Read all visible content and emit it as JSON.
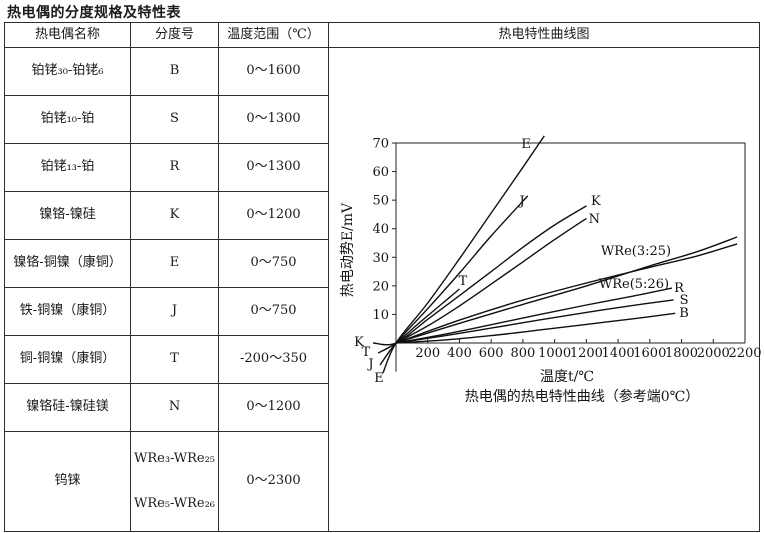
{
  "page_title": "热电偶的分度规格及特性表",
  "table": {
    "headers": [
      "热电偶名称",
      "分度号",
      "温度范围（℃）",
      "热电特性曲线图"
    ],
    "rows": [
      {
        "name": "铂铑₃₀-铂铑₆",
        "code": "B",
        "range": "0～1600"
      },
      {
        "name": "铂铑₁₀-铂",
        "code": "S",
        "range": "0～1300"
      },
      {
        "name": "铂铑₁₃-铂",
        "code": "R",
        "range": "0～1300"
      },
      {
        "name": "镍铬-镍硅",
        "code": "K",
        "range": "0～1200"
      },
      {
        "name": "镍铬-铜镍（康铜）",
        "code": "E",
        "range": "0～750"
      },
      {
        "name": "铁-铜镍（康铜）",
        "code": "J",
        "range": "0～750"
      },
      {
        "name": "铜-铜镍（康铜）",
        "code": "T",
        "range": "-200～350"
      },
      {
        "name": "镍铬硅-镍硅镁",
        "code": "N",
        "range": "0～1200"
      },
      {
        "name": "钨铼",
        "code": [
          "WRe₃-WRe₂₅",
          "WRe₅-WRe₂₆"
        ],
        "range": "0～2300",
        "tall": true
      }
    ]
  },
  "chart_data": {
    "type": "line",
    "title": "热电特性曲线图",
    "xlabel": "温度t/℃",
    "ylabel": "热电动势E/mV",
    "caption": "热电偶的热电特性曲线（参考端0℃）",
    "xlim": [
      0,
      2200
    ],
    "ylim": [
      0,
      70
    ],
    "y_axis_min": -10,
    "grid": false,
    "line_color": "#101010",
    "xticks": [
      200,
      400,
      600,
      800,
      1000,
      1200,
      1400,
      1600,
      1800,
      2000,
      2200
    ],
    "yticks": [
      10,
      20,
      30,
      40,
      50,
      60,
      70
    ],
    "series": [
      {
        "name": "E",
        "points": [
          [
            -82,
            -10.5
          ],
          [
            0,
            0
          ],
          [
            200,
            14
          ],
          [
            400,
            29.5
          ],
          [
            600,
            45.5
          ],
          [
            800,
            61.5
          ],
          [
            935,
            72.5
          ]
        ],
        "labels": [
          {
            "text": "E",
            "t": 820,
            "e": 69.6
          },
          {
            "text": "E",
            "t": -107,
            "e": -12.3
          }
        ]
      },
      {
        "name": "J",
        "points": [
          [
            -101,
            -7.7
          ],
          [
            0,
            0
          ],
          [
            200,
            12
          ],
          [
            400,
            24.5
          ],
          [
            600,
            37.5
          ],
          [
            830,
            51.5
          ]
        ],
        "labels": [
          {
            "text": "J",
            "t": 795,
            "e": 49.7
          },
          {
            "text": "J",
            "t": -158,
            "e": -7.35
          }
        ]
      },
      {
        "name": "T",
        "points": [
          [
            -113,
            -3.5
          ],
          [
            0,
            0
          ],
          [
            150,
            7.2
          ],
          [
            300,
            14.2
          ],
          [
            400,
            18.9
          ]
        ],
        "labels": [
          {
            "text": "T",
            "t": 422,
            "e": 21.7
          },
          {
            "text": "T",
            "t": -189,
            "e": -3.15
          }
        ]
      },
      {
        "name": "K",
        "points": [
          [
            -145,
            0
          ],
          [
            0,
            0
          ],
          [
            200,
            8.3
          ],
          [
            400,
            16.6
          ],
          [
            600,
            25
          ],
          [
            800,
            33.5
          ],
          [
            1000,
            41.3
          ],
          [
            1200,
            48
          ]
        ],
        "labels": [
          {
            "text": "K",
            "t": 1260,
            "e": 49.7
          },
          {
            "text": "K",
            "t": -233,
            "e": 0.35
          }
        ]
      },
      {
        "name": "N",
        "points": [
          [
            0,
            0
          ],
          [
            200,
            6
          ],
          [
            400,
            13
          ],
          [
            600,
            20.6
          ],
          [
            800,
            28.4
          ],
          [
            1000,
            36.2
          ],
          [
            1200,
            43.6
          ]
        ],
        "labels": [
          {
            "text": "N",
            "t": 1250,
            "e": 43.4
          }
        ]
      },
      {
        "name": "WRe(3:25)",
        "points": [
          [
            0,
            0
          ],
          [
            400,
            6.9
          ],
          [
            800,
            13.5
          ],
          [
            1200,
            20
          ],
          [
            1600,
            27
          ],
          [
            1900,
            32
          ],
          [
            2150,
            37.1
          ]
        ],
        "labels": [
          {
            "text": "WRe(3:25)",
            "t": 1513,
            "e": 32.2
          }
        ]
      },
      {
        "name": "WRe(5:26)",
        "points": [
          [
            0,
            0
          ],
          [
            400,
            8
          ],
          [
            800,
            15
          ],
          [
            1200,
            21
          ],
          [
            1600,
            26.5
          ],
          [
            1900,
            30.5
          ],
          [
            2150,
            34.7
          ]
        ],
        "labels": [
          {
            "text": "WRe(5:26)",
            "t": 1500,
            "e": 20.65
          }
        ]
      },
      {
        "name": "R",
        "points": [
          [
            0,
            0
          ],
          [
            300,
            3
          ],
          [
            600,
            6.4
          ],
          [
            900,
            9.9
          ],
          [
            1200,
            13.3
          ],
          [
            1500,
            16.5
          ],
          [
            1740,
            19.2
          ]
        ],
        "labels": [
          {
            "text": "R",
            "t": 1784,
            "e": 19.25
          }
        ]
      },
      {
        "name": "S",
        "points": [
          [
            0,
            0
          ],
          [
            300,
            2.5
          ],
          [
            600,
            5.2
          ],
          [
            900,
            8
          ],
          [
            1200,
            10.7
          ],
          [
            1500,
            13.2
          ],
          [
            1750,
            15.1
          ]
        ],
        "labels": [
          {
            "text": "S",
            "t": 1816,
            "e": 15.05
          }
        ]
      },
      {
        "name": "B",
        "points": [
          [
            0,
            0
          ],
          [
            300,
            1
          ],
          [
            600,
            2.6
          ],
          [
            900,
            4.5
          ],
          [
            1200,
            6.5
          ],
          [
            1500,
            8.5
          ],
          [
            1760,
            10.4
          ]
        ],
        "labels": [
          {
            "text": "B",
            "t": 1816,
            "e": 10.5
          }
        ]
      }
    ]
  }
}
